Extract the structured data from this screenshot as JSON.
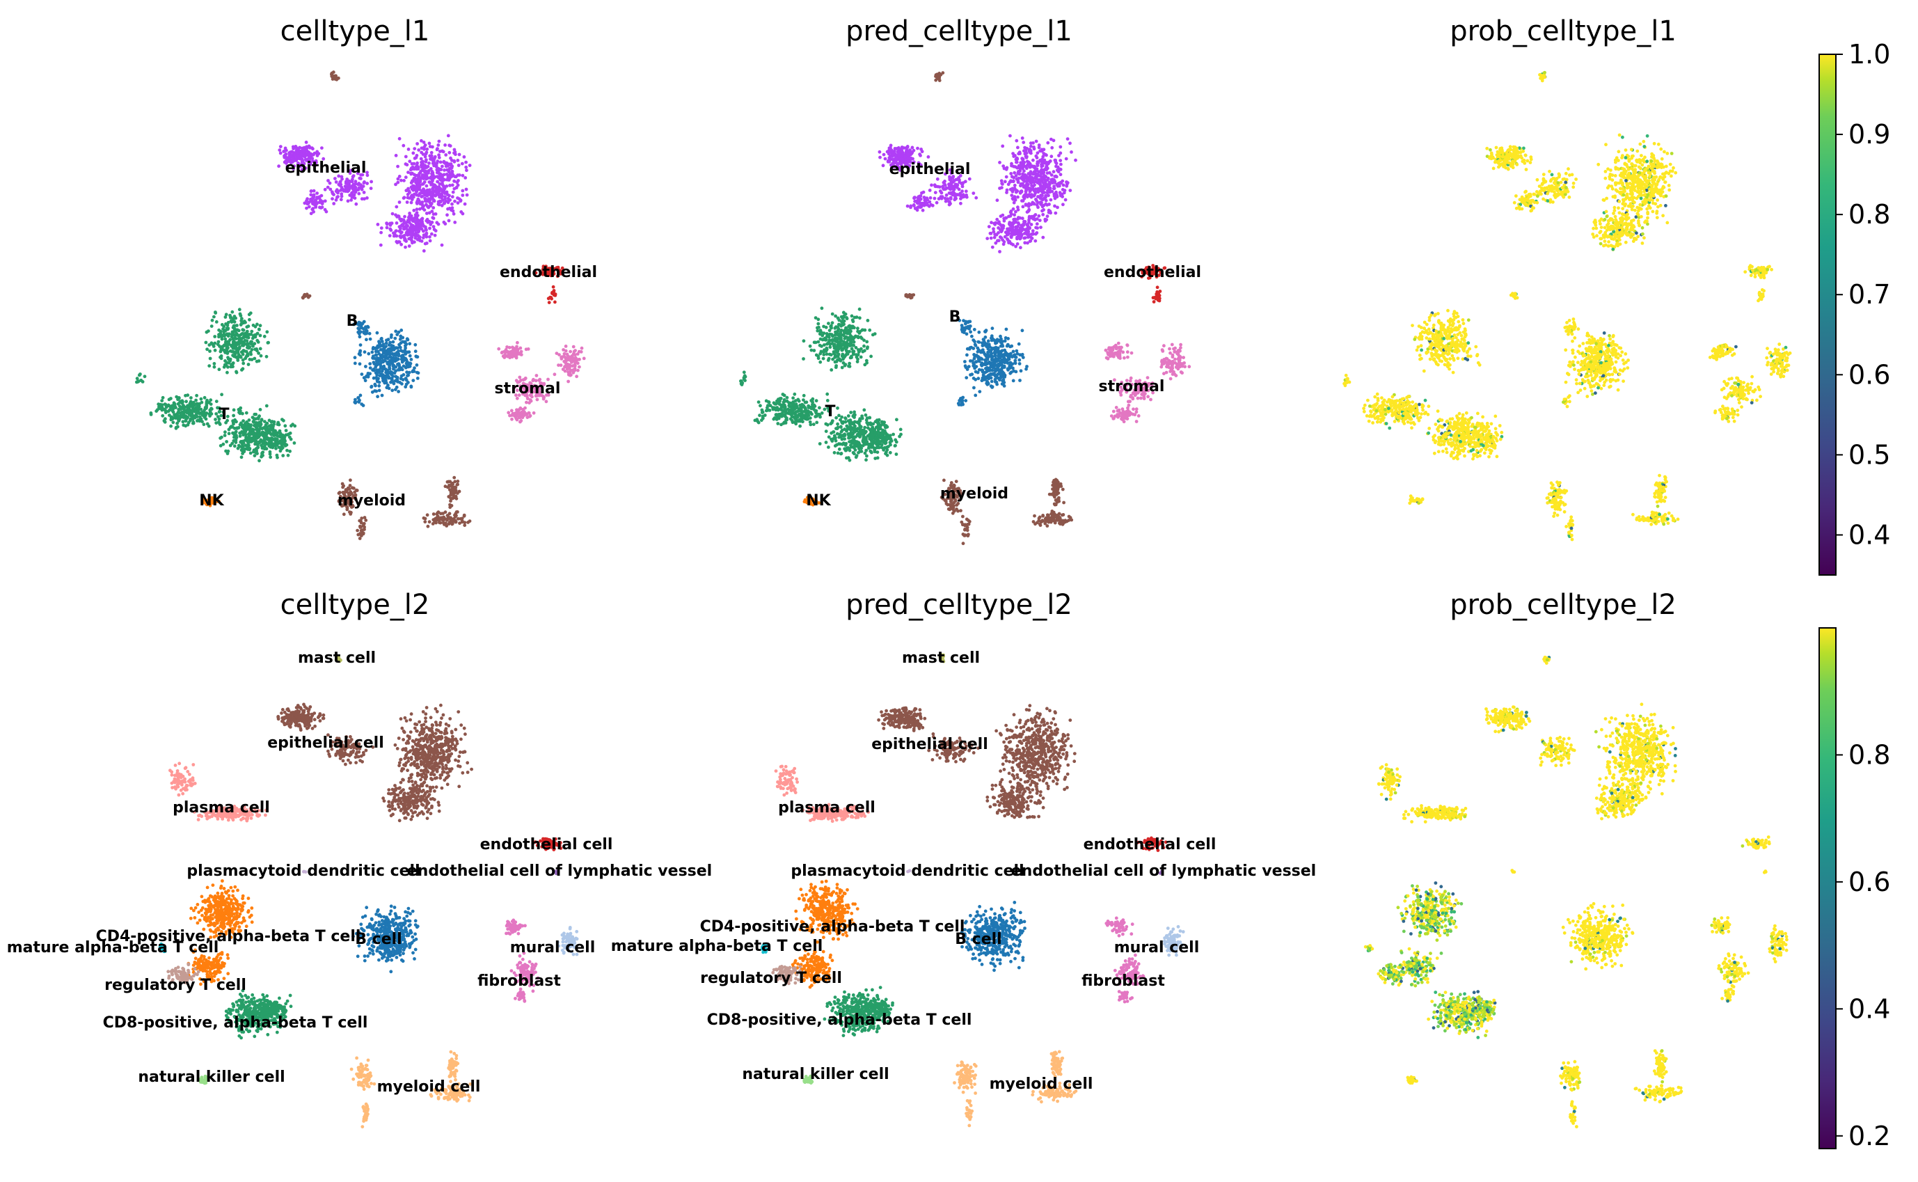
{
  "chart_data": [
    {
      "type": "scatter",
      "title": "celltype_l1",
      "labels": [
        "epithelial",
        "endothelial",
        "B",
        "stromal",
        "T",
        "NK",
        "myeloid"
      ],
      "series": [
        {
          "name": "epithelial",
          "color": "#b03ff6"
        },
        {
          "name": "endothelial",
          "color": "#d62728"
        },
        {
          "name": "B",
          "color": "#1f77b4"
        },
        {
          "name": "stromal",
          "color": "#e377c2"
        },
        {
          "name": "T",
          "color": "#279e68"
        },
        {
          "name": "NK",
          "color": "#ff7f0e"
        },
        {
          "name": "myeloid",
          "color": "#8c564b"
        }
      ]
    },
    {
      "type": "scatter",
      "title": "pred_celltype_l1",
      "labels": [
        "epithelial",
        "endothelial",
        "B",
        "stromal",
        "T",
        "NK",
        "myeloid"
      ],
      "series": [
        {
          "name": "epithelial",
          "color": "#b03ff6"
        },
        {
          "name": "endothelial",
          "color": "#d62728"
        },
        {
          "name": "B",
          "color": "#1f77b4"
        },
        {
          "name": "stromal",
          "color": "#e377c2"
        },
        {
          "name": "T",
          "color": "#279e68"
        },
        {
          "name": "NK",
          "color": "#ff7f0e"
        },
        {
          "name": "myeloid",
          "color": "#8c564b"
        }
      ]
    },
    {
      "type": "scatter",
      "title": "prob_celltype_l1",
      "colorbar": {
        "colormap": "viridis",
        "range": [
          0.35,
          1.0
        ],
        "ticks": [
          "1.0",
          "0.9",
          "0.8",
          "0.7",
          "0.6",
          "0.5",
          "0.4"
        ]
      }
    },
    {
      "type": "scatter",
      "title": "celltype_l2",
      "labels": [
        "mast cell",
        "epithelial cell",
        "plasma cell",
        "endothelial cell",
        "plasmacytoid dendritic cell",
        "endothelial cell of lymphatic vessel",
        "CD4-positive, alpha-beta T cell",
        "B cell",
        "mature alpha-beta T cell",
        "mural cell",
        "regulatory T cell",
        "fibroblast",
        "CD8-positive, alpha-beta T cell",
        "natural killer cell",
        "myeloid cell"
      ],
      "series": [
        {
          "name": "mast cell",
          "color": "#b5bd61"
        },
        {
          "name": "epithelial cell",
          "color": "#8c564b"
        },
        {
          "name": "plasma cell",
          "color": "#ff9896"
        },
        {
          "name": "endothelial cell",
          "color": "#d62728"
        },
        {
          "name": "plasmacytoid dendritic cell",
          "color": "#c5b0d5"
        },
        {
          "name": "endothelial cell of lymphatic vessel",
          "color": "#9467bd"
        },
        {
          "name": "CD4-positive, alpha-beta T cell",
          "color": "#ff7f0e"
        },
        {
          "name": "B cell",
          "color": "#1f77b4"
        },
        {
          "name": "mature alpha-beta T cell",
          "color": "#17becf"
        },
        {
          "name": "mural cell",
          "color": "#aec7e8"
        },
        {
          "name": "regulatory T cell",
          "color": "#c49c94"
        },
        {
          "name": "fibroblast",
          "color": "#e377c2"
        },
        {
          "name": "CD8-positive, alpha-beta T cell",
          "color": "#279e68"
        },
        {
          "name": "natural killer cell",
          "color": "#98df8a"
        },
        {
          "name": "myeloid cell",
          "color": "#ffbb78"
        }
      ]
    },
    {
      "type": "scatter",
      "title": "pred_celltype_l2",
      "labels": [
        "mast cell",
        "epithelial cell",
        "plasma cell",
        "endothelial cell",
        "plasmacytoid dendritic cell",
        "endothelial cell of lymphatic vessel",
        "CD4-positive, alpha-beta T cell",
        "B cell",
        "mature alpha-beta T cell",
        "mural cell",
        "regulatory T cell",
        "fibroblast",
        "CD8-positive, alpha-beta T cell",
        "natural killer cell",
        "myeloid cell"
      ]
    },
    {
      "type": "scatter",
      "title": "prob_celltype_l2",
      "colorbar": {
        "colormap": "viridis",
        "range": [
          0.18,
          1.0
        ],
        "ticks": [
          "0.8",
          "0.6",
          "0.4",
          "0.2"
        ]
      }
    }
  ]
}
